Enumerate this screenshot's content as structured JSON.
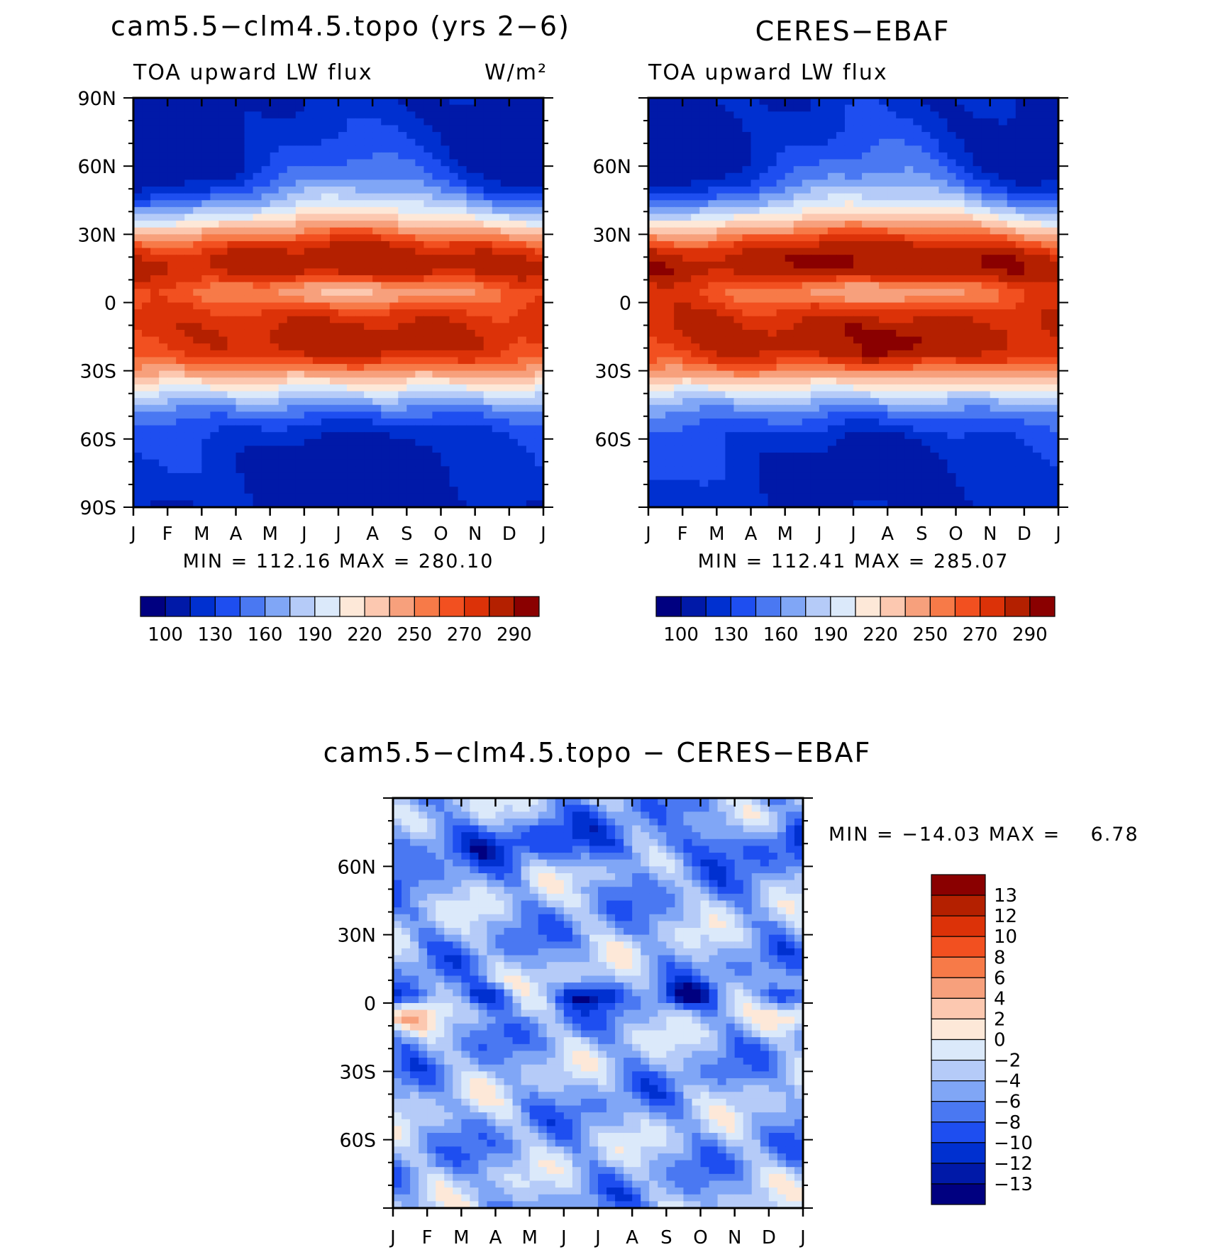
{
  "palettes": {
    "sequential": [
      "#000080",
      "#0019a8",
      "#0030d0",
      "#1e4ef0",
      "#4a78f2",
      "#80a6f6",
      "#b5cbf8",
      "#dbe9fa",
      "#fde8d8",
      "#fcc8b0",
      "#f7a07c",
      "#f77a48",
      "#f25020",
      "#dc3208",
      "#b42000",
      "#8a0000"
    ],
    "difference": [
      "#000080",
      "#0019a8",
      "#0030d0",
      "#1e4ef0",
      "#4a78f2",
      "#80a6f6",
      "#b5cbf8",
      "#dbe9fa",
      "#fde8d8",
      "#fcc8b0",
      "#f7a07c",
      "#f77a48",
      "#f25020",
      "#dc3208",
      "#b42000",
      "#8a0000"
    ]
  },
  "month_labels": [
    "J",
    "F",
    "M",
    "A",
    "M",
    "J",
    "J",
    "A",
    "S",
    "O",
    "N",
    "D",
    "J"
  ],
  "chart_data": [
    {
      "type": "contour",
      "title": "cam5.5−clm4.5.topo (yrs 2−6)",
      "subtitle_left": "TOA upward LW flux",
      "units": "W/m²",
      "x_axis": "month",
      "y_ticks": [
        "90N",
        "60N",
        "30N",
        "0",
        "30S",
        "60S",
        "90S"
      ],
      "y_range": [
        -90,
        90
      ],
      "stats": "MIN = 112.16 MAX = 280.10",
      "min": 112.16,
      "max": 280.1,
      "colorbar_labels": [
        "100",
        "130",
        "160",
        "190",
        "220",
        "250",
        "270",
        "290"
      ],
      "field": "model"
    },
    {
      "type": "contour",
      "title": "CERES−EBAF",
      "subtitle_left": "TOA upward LW flux",
      "x_axis": "month",
      "y_ticks": [
        "",
        "60N",
        "30N",
        "0",
        "30S",
        "60S",
        ""
      ],
      "y_range": [
        -90,
        90
      ],
      "stats": "MIN = 112.41 MAX = 285.07",
      "min": 112.41,
      "max": 285.07,
      "colorbar_labels": [
        "100",
        "130",
        "160",
        "190",
        "220",
        "250",
        "270",
        "290"
      ],
      "field": "obs"
    },
    {
      "type": "contour",
      "title": "cam5.5−clm4.5.topo − CERES−EBAF",
      "x_axis": "month",
      "y_ticks": [
        "",
        "60N",
        "30N",
        "0",
        "30S",
        "60S",
        ""
      ],
      "y_range": [
        -90,
        90
      ],
      "stats": "MIN = −14.03 MAX =    6.78",
      "min": -14.03,
      "max": 6.78,
      "colorbar_labels": [
        "13",
        "12",
        "10",
        "8",
        "6",
        "4",
        "2",
        "0",
        "−2",
        "−4",
        "−6",
        "−8",
        "−10",
        "−12",
        "−13"
      ],
      "field": "diff"
    }
  ]
}
